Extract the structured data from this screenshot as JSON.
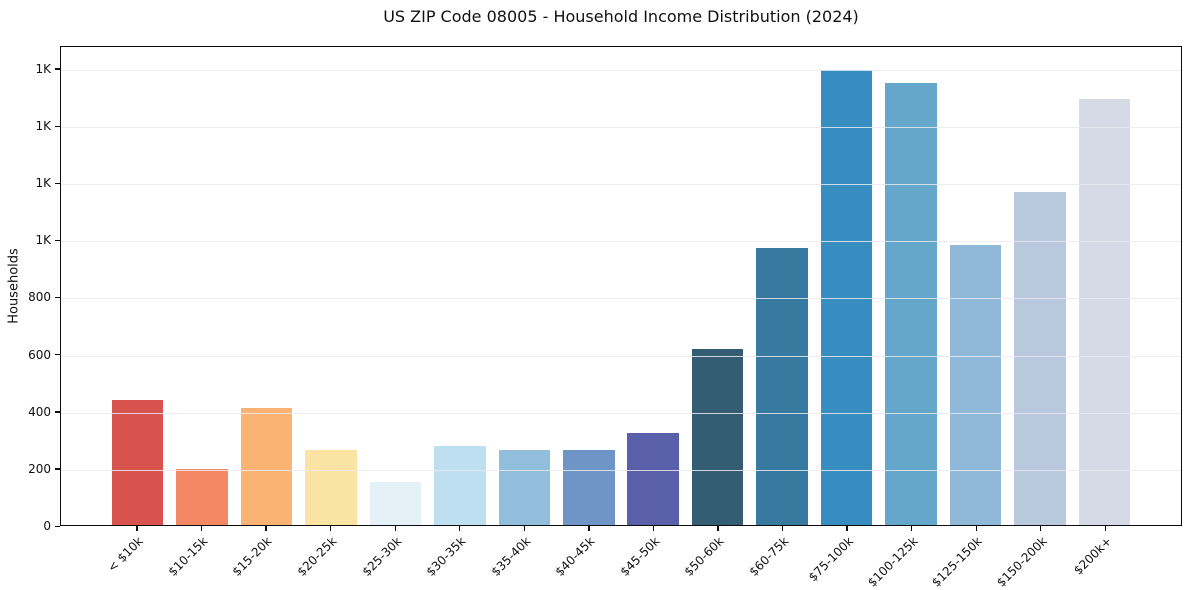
{
  "figure": {
    "background": "#ffffff"
  },
  "chart_data": {
    "type": "bar",
    "title": "US ZIP Code 08005 - Household Income Distribution (2024)",
    "xlabel": "",
    "ylabel": "Households",
    "categories": [
      "< $10k",
      "$10-15k",
      "$15-20k",
      "$20-25k",
      "$25-30k",
      "$30-35k",
      "$35-40k",
      "$40-45k",
      "$45-50k",
      "$50-60k",
      "$60-75k",
      "$75-100k",
      "$100-125k",
      "$125-150k",
      "$150-200k",
      "$200k+"
    ],
    "values": [
      440,
      197,
      412,
      265,
      152,
      277,
      265,
      262,
      325,
      620,
      975,
      1598,
      1553,
      985,
      1172,
      1497
    ],
    "bar_colors": [
      "#d9534e",
      "#f48764",
      "#fab373",
      "#fbe3a3",
      "#e4f2f8",
      "#bddff0",
      "#91bedb",
      "#6e95c5",
      "#5a5fa9",
      "#345d73",
      "#38799f",
      "#388dc0",
      "#64a7cb",
      "#90b8d9",
      "#b8c9de",
      "#d6d9e6"
    ],
    "ylim": [
      0,
      1680
    ],
    "yticks": [
      {
        "value": 0,
        "label": "0"
      },
      {
        "value": 200,
        "label": "200"
      },
      {
        "value": 400,
        "label": "400"
      },
      {
        "value": 600,
        "label": "600"
      },
      {
        "value": 800,
        "label": "800"
      },
      {
        "value": 1000,
        "label": "1K"
      },
      {
        "value": 1200,
        "label": "1K"
      },
      {
        "value": 1400,
        "label": "1K"
      },
      {
        "value": 1600,
        "label": "1K"
      }
    ],
    "xtick_label_rotation_deg": 45,
    "grid": "horizontal",
    "grid_above_bars": true,
    "legend": "none",
    "grid_color": "#e9eaf1",
    "spine_color": "#0d0d0d",
    "text_color": "#111111"
  }
}
